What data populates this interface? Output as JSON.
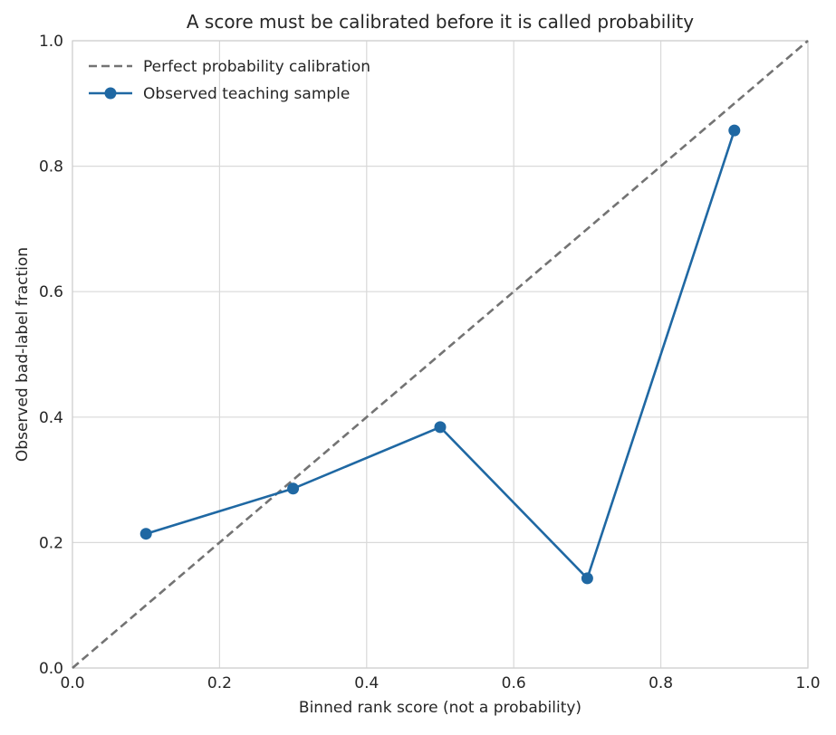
{
  "chart_data": {
    "type": "line",
    "title": "A score must be calibrated before it is called probability",
    "xlabel": "Binned rank score (not a probability)",
    "ylabel": "Observed bad-label fraction",
    "xlim": [
      0.0,
      1.0
    ],
    "ylim": [
      0.0,
      1.0
    ],
    "xticks": [
      "0.0",
      "0.2",
      "0.4",
      "0.6",
      "0.8",
      "1.0"
    ],
    "yticks": [
      "0.0",
      "0.2",
      "0.4",
      "0.6",
      "0.8",
      "1.0"
    ],
    "grid": true,
    "legend_position": "top-left",
    "series": [
      {
        "name": "Perfect probability calibration",
        "style": "dashed",
        "color": "#737373",
        "x": [
          0.0,
          1.0
        ],
        "y": [
          0.0,
          1.0
        ]
      },
      {
        "name": "Observed teaching sample",
        "style": "solid-marker",
        "color": "#1f68a3",
        "x": [
          0.1,
          0.3,
          0.5,
          0.7,
          0.9
        ],
        "y": [
          0.214,
          0.286,
          0.384,
          0.143,
          0.857
        ]
      }
    ]
  }
}
